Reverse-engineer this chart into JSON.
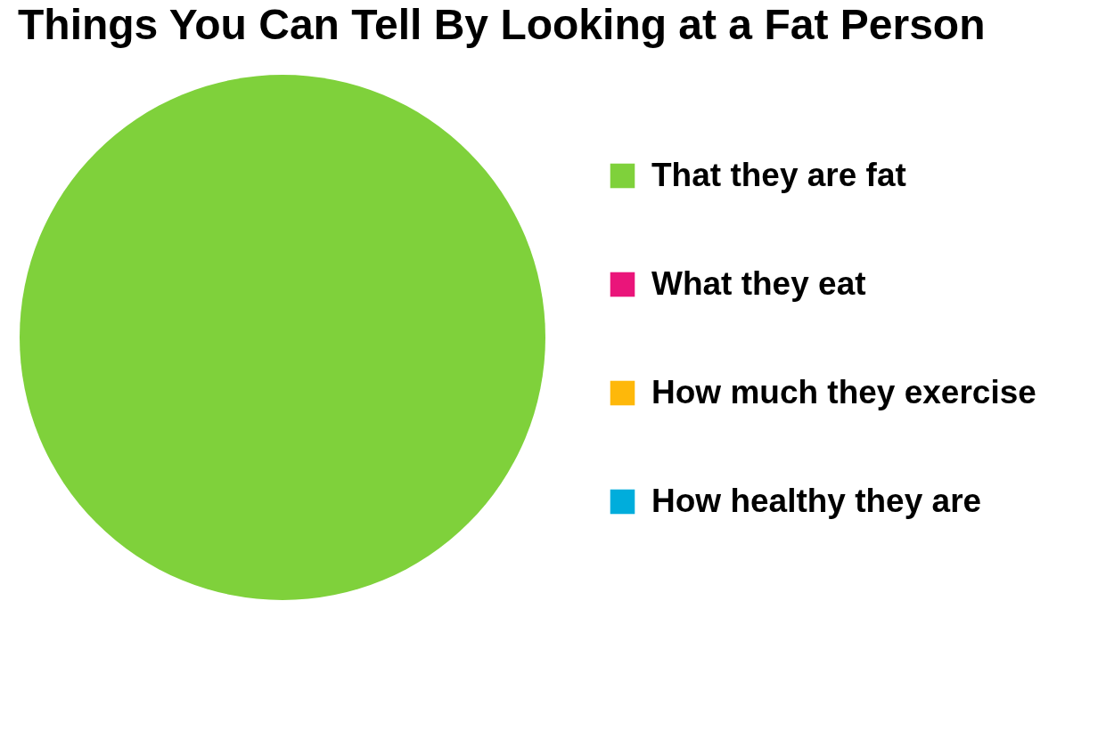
{
  "chart_data": {
    "type": "pie",
    "title": "Things You Can Tell By Looking at a Fat Person",
    "categories": [
      "That they are fat",
      "What they eat",
      "How much they exercise",
      "How healthy they are"
    ],
    "values": [
      100,
      0,
      0,
      0
    ],
    "colors": [
      "#7fd13b",
      "#ea157a",
      "#feb80a",
      "#00addc"
    ],
    "legend": "right"
  }
}
